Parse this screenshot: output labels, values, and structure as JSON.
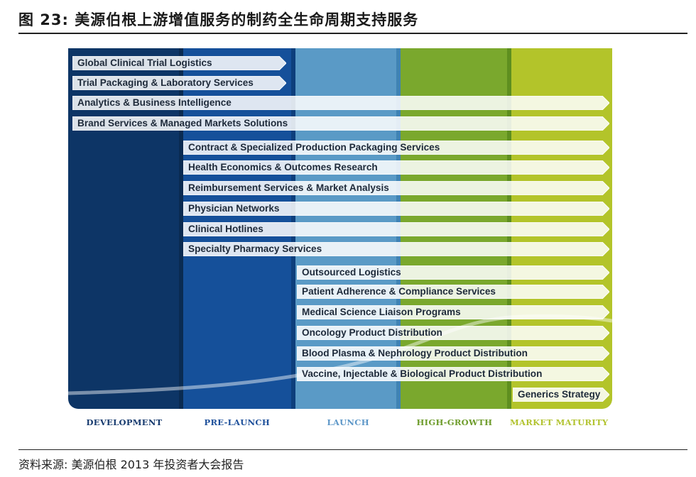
{
  "title": "图 23: 美源伯根上游增值服务的制药全生命周期支持服务",
  "source": "资料来源: 美源伯根 2013 年投资者大会报告",
  "phases": [
    {
      "label": "DEVELOPMENT",
      "color": "#0d3566",
      "label_color": "#163a6e"
    },
    {
      "label": "PRE-LAUNCH",
      "color": "#15509a",
      "label_color": "#1d4f9a"
    },
    {
      "label": "LAUNCH",
      "color": "#5a9ac6",
      "label_color": "#5d97c8"
    },
    {
      "label": "HIGH-GROWTH",
      "color": "#7aa82d",
      "label_color": "#6e9c2c"
    },
    {
      "label": "MARKET MATURITY",
      "color": "#b3c42a",
      "label_color": "#b2c330"
    }
  ],
  "services": [
    {
      "label": "Global Clinical Trial Logistics",
      "start_phase": "DEVELOPMENT",
      "end_phase": "PRE-LAUNCH"
    },
    {
      "label": "Trial Packaging & Laboratory Services",
      "start_phase": "DEVELOPMENT",
      "end_phase": "PRE-LAUNCH"
    },
    {
      "label": "Analytics & Business Intelligence",
      "start_phase": "DEVELOPMENT",
      "end_phase": "MARKET MATURITY"
    },
    {
      "label": "Brand Services & Managed Markets Solutions",
      "start_phase": "DEVELOPMENT",
      "end_phase": "MARKET MATURITY"
    },
    {
      "label": "Contract & Specialized Production Packaging Services",
      "start_phase": "PRE-LAUNCH",
      "end_phase": "MARKET MATURITY"
    },
    {
      "label": "Health Economics & Outcomes Research",
      "start_phase": "PRE-LAUNCH",
      "end_phase": "MARKET MATURITY"
    },
    {
      "label": "Reimbursement Services & Market Analysis",
      "start_phase": "PRE-LAUNCH",
      "end_phase": "MARKET MATURITY"
    },
    {
      "label": "Physician Networks",
      "start_phase": "PRE-LAUNCH",
      "end_phase": "MARKET MATURITY"
    },
    {
      "label": "Clinical Hotlines",
      "start_phase": "PRE-LAUNCH",
      "end_phase": "MARKET MATURITY"
    },
    {
      "label": "Specialty Pharmacy Services",
      "start_phase": "PRE-LAUNCH",
      "end_phase": "MARKET MATURITY"
    },
    {
      "label": "Outsourced Logistics",
      "start_phase": "LAUNCH",
      "end_phase": "MARKET MATURITY"
    },
    {
      "label": "Patient Adherence & Compliance Services",
      "start_phase": "LAUNCH",
      "end_phase": "MARKET MATURITY"
    },
    {
      "label": "Medical Science Liaison Programs",
      "start_phase": "LAUNCH",
      "end_phase": "MARKET MATURITY"
    },
    {
      "label": "Oncology Product Distribution",
      "start_phase": "LAUNCH",
      "end_phase": "MARKET MATURITY"
    },
    {
      "label": "Blood Plasma & Nephrology Product Distribution",
      "start_phase": "LAUNCH",
      "end_phase": "MARKET MATURITY"
    },
    {
      "label": "Vaccine, Injectable & Biological Product Distribution",
      "start_phase": "LAUNCH",
      "end_phase": "MARKET MATURITY"
    },
    {
      "label": "Generics Strategy",
      "start_phase": "MARKET MATURITY",
      "end_phase": "MARKET MATURITY"
    }
  ]
}
